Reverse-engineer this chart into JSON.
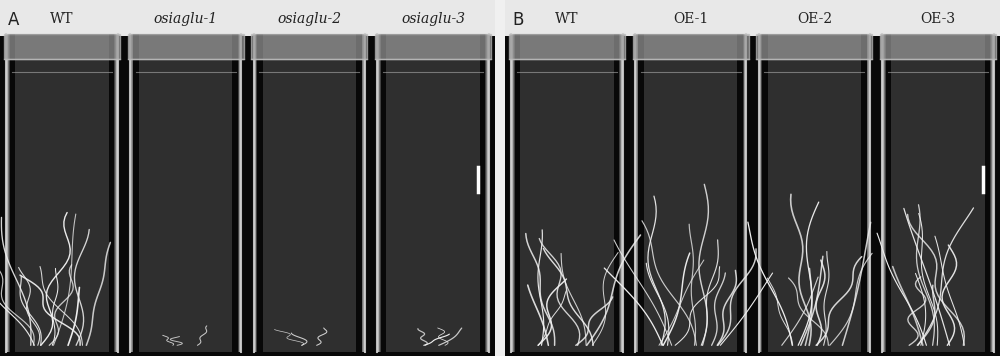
{
  "panel_A": {
    "label": "A",
    "col_labels": [
      "WT",
      "osiaglu-1",
      "osiaglu-2",
      "osiaglu-3"
    ],
    "col_label_styles": [
      "normal",
      "italic",
      "italic",
      "italic"
    ]
  },
  "panel_B": {
    "label": "B",
    "col_labels": [
      "WT",
      "OE-1",
      "OE-2",
      "OE-3"
    ],
    "col_label_styles": [
      "normal",
      "normal",
      "normal",
      "normal"
    ]
  },
  "fig_bg": "#f0f0f0",
  "outer_bg": "#f0f0f0",
  "panel_bg": "#0a0a0a",
  "header_color": "#333333",
  "header_fontsize": 10,
  "panel_label_fontsize": 12,
  "figsize": [
    10.0,
    3.56
  ],
  "dpi": 100,
  "tube_grad_center": "#b0b0b0",
  "tube_grad_edge": "#d8d8d8",
  "tube_inner_bg": "#808080",
  "root_color": "#f0f0f0",
  "scale_bar_color": "#cccccc"
}
